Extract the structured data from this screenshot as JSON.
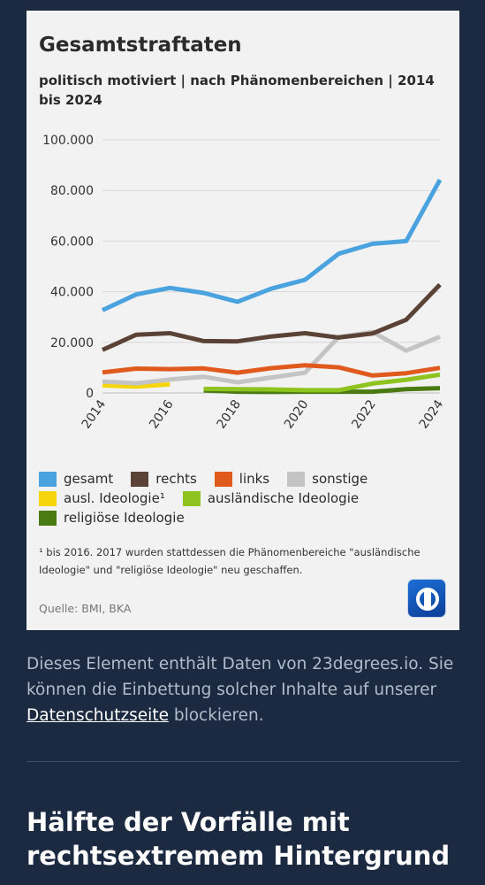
{
  "card": {
    "footnote": "¹ bis 2016. 2017 wurden stattdessen die Phänomenbereiche \"ausländische Ideologie\" und \"religiöse Ideologie\" neu geschaffen.",
    "source": "Quelle:  BMI, BKA",
    "logo_icon": "tagesschau-logo-icon"
  },
  "chart_data": {
    "type": "line",
    "title": "Gesamtstraftaten",
    "subtitle": "politisch motiviert | nach Phänomenbereichen |  2014 bis 2024",
    "xlabel": "",
    "ylabel": "",
    "xlim": [
      2014,
      2024
    ],
    "ylim": [
      0,
      100000
    ],
    "yticks": [
      0,
      20000,
      40000,
      60000,
      80000,
      100000
    ],
    "ytick_labels": [
      "0",
      "20.000",
      "40.000",
      "60.000",
      "80.000",
      "100.000"
    ],
    "xticks": [
      2014,
      2016,
      2018,
      2020,
      2022,
      2024
    ],
    "xtick_labels": [
      "2014",
      "2016",
      "2018",
      "2020",
      "2022",
      "2024"
    ],
    "grid": true,
    "legend_position": "bottom",
    "series": [
      {
        "name": "gesamt",
        "color": "#4aa3df",
        "x": [
          2014,
          2015,
          2016,
          2017,
          2018,
          2019,
          2020,
          2021,
          2022,
          2023,
          2024
        ],
        "values": [
          32700,
          38900,
          41500,
          39500,
          36000,
          41200,
          44700,
          55000,
          58900,
          60000,
          84200
        ]
      },
      {
        "name": "rechts",
        "color": "#5b4236",
        "x": [
          2014,
          2015,
          2016,
          2017,
          2018,
          2019,
          2020,
          2021,
          2022,
          2023,
          2024
        ],
        "values": [
          17000,
          23000,
          23600,
          20500,
          20400,
          22300,
          23600,
          21900,
          23500,
          28900,
          42800
        ]
      },
      {
        "name": "links",
        "color": "#e05a1e",
        "x": [
          2014,
          2015,
          2016,
          2017,
          2018,
          2019,
          2020,
          2021,
          2022,
          2023,
          2024
        ],
        "values": [
          8100,
          9600,
          9400,
          9700,
          8000,
          9800,
          10900,
          10100,
          6900,
          7800,
          9900
        ]
      },
      {
        "name": "sonstige",
        "color": "#c4c4c4",
        "x": [
          2014,
          2015,
          2016,
          2017,
          2018,
          2019,
          2020,
          2021,
          2022,
          2023,
          2024
        ],
        "values": [
          4500,
          3800,
          5300,
          6400,
          4200,
          6100,
          8000,
          22100,
          24100,
          16700,
          22200
        ]
      },
      {
        "name": "ausl. Ideologie¹",
        "color": "#f5d60c",
        "x": [
          2014,
          2015,
          2016
        ],
        "values": [
          3000,
          2500,
          3400
        ]
      },
      {
        "name": "ausländische Ideologie",
        "color": "#8fc31f",
        "x": [
          2017,
          2018,
          2019,
          2020,
          2021,
          2022,
          2023,
          2024
        ],
        "values": [
          1600,
          1500,
          1400,
          1100,
          1100,
          3700,
          5200,
          7200
        ]
      },
      {
        "name": "religiöse Ideologie",
        "color": "#4a7a12",
        "x": [
          2017,
          2018,
          2019,
          2020,
          2021,
          2022,
          2023,
          2024
        ],
        "values": [
          1000,
          500,
          400,
          500,
          500,
          500,
          1500,
          1900
        ]
      }
    ]
  },
  "embed_note": {
    "text_before": "Dieses Element enthält Daten von 23degrees.io. Sie können die Einbettung solcher Inhalte auf unserer ",
    "link_label": "Datenschutzseite",
    "text_after": " blockieren."
  },
  "article": {
    "heading": "Hälfte der Vorfälle mit rechtsextremem Hintergrund"
  }
}
